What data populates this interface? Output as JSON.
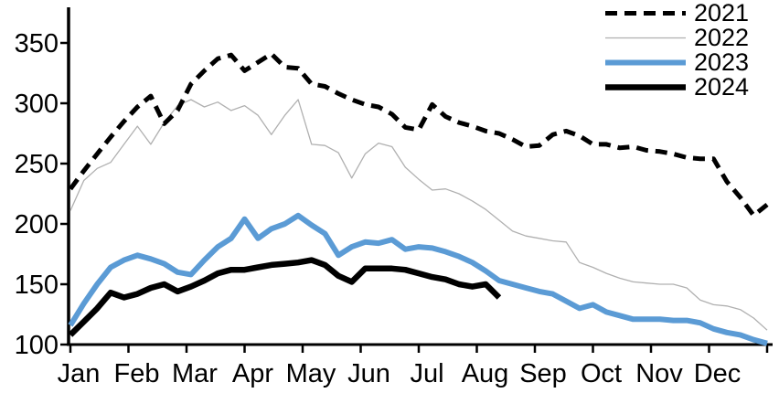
{
  "chart_data": {
    "type": "line",
    "title": "",
    "xlabel": "",
    "ylabel": "",
    "x_axis": {
      "tick_labels": [
        "Jan",
        "Feb",
        "Mar",
        "Apr",
        "May",
        "Jun",
        "Jul",
        "Aug",
        "Sep",
        "Oct",
        "Nov",
        "Dec"
      ],
      "points_per_year": 52,
      "cadence": "weekly"
    },
    "y_axis": {
      "ticks": [
        100,
        150,
        200,
        250,
        300,
        350
      ],
      "range": [
        100,
        379
      ],
      "grid": false
    },
    "legend_position": "top-right",
    "series": [
      {
        "name": "2021",
        "color": "#000000",
        "line_style": "dashed",
        "line_width": 5,
        "values": [
          229,
          244,
          258,
          272,
          285,
          297,
          306,
          283,
          294,
          316,
          327,
          337,
          340,
          327,
          334,
          341,
          330,
          329,
          316,
          314,
          308,
          303,
          299,
          297,
          291,
          280,
          278,
          299,
          289,
          284,
          281,
          277,
          275,
          270,
          264,
          265,
          274,
          277,
          273,
          266,
          266,
          263,
          264,
          261,
          260,
          258,
          255,
          254,
          254,
          235,
          222,
          207,
          216
        ]
      },
      {
        "name": "2022",
        "color": "#b0b0b0",
        "line_style": "solid",
        "line_width": 1.3,
        "values": [
          211,
          236,
          246,
          251,
          266,
          281,
          266,
          284,
          298,
          303,
          297,
          301,
          294,
          298,
          290,
          274,
          290,
          303,
          266,
          265,
          259,
          238,
          258,
          267,
          264,
          247,
          237,
          228,
          229,
          225,
          219,
          212,
          203,
          194,
          190,
          188,
          186,
          185,
          168,
          164,
          159,
          155,
          152,
          151,
          150,
          150,
          147,
          137,
          133,
          132,
          129,
          122,
          112
        ]
      },
      {
        "name": "2023",
        "color": "#5b9bd5",
        "line_style": "solid",
        "line_width": 6,
        "values": [
          116,
          134,
          150,
          164,
          170,
          174,
          171,
          167,
          160,
          158,
          170,
          181,
          188,
          204,
          188,
          196,
          200,
          207,
          199,
          192,
          174,
          181,
          185,
          184,
          187,
          179,
          181,
          180,
          177,
          173,
          168,
          161,
          153,
          150,
          147,
          144,
          142,
          136,
          130,
          133,
          127,
          124,
          121,
          121,
          121,
          120,
          120,
          118,
          113,
          110,
          108,
          104,
          101
        ]
      },
      {
        "name": "2024",
        "color": "#000000",
        "line_style": "solid",
        "line_width": 6.5,
        "values": [
          108,
          119,
          130,
          143,
          139,
          142,
          147,
          150,
          144,
          148,
          153,
          159,
          162,
          162,
          164,
          166,
          167,
          168,
          170,
          166,
          157,
          152,
          163,
          163,
          163,
          162,
          159,
          156,
          154,
          150,
          148,
          150,
          139
        ]
      }
    ]
  }
}
